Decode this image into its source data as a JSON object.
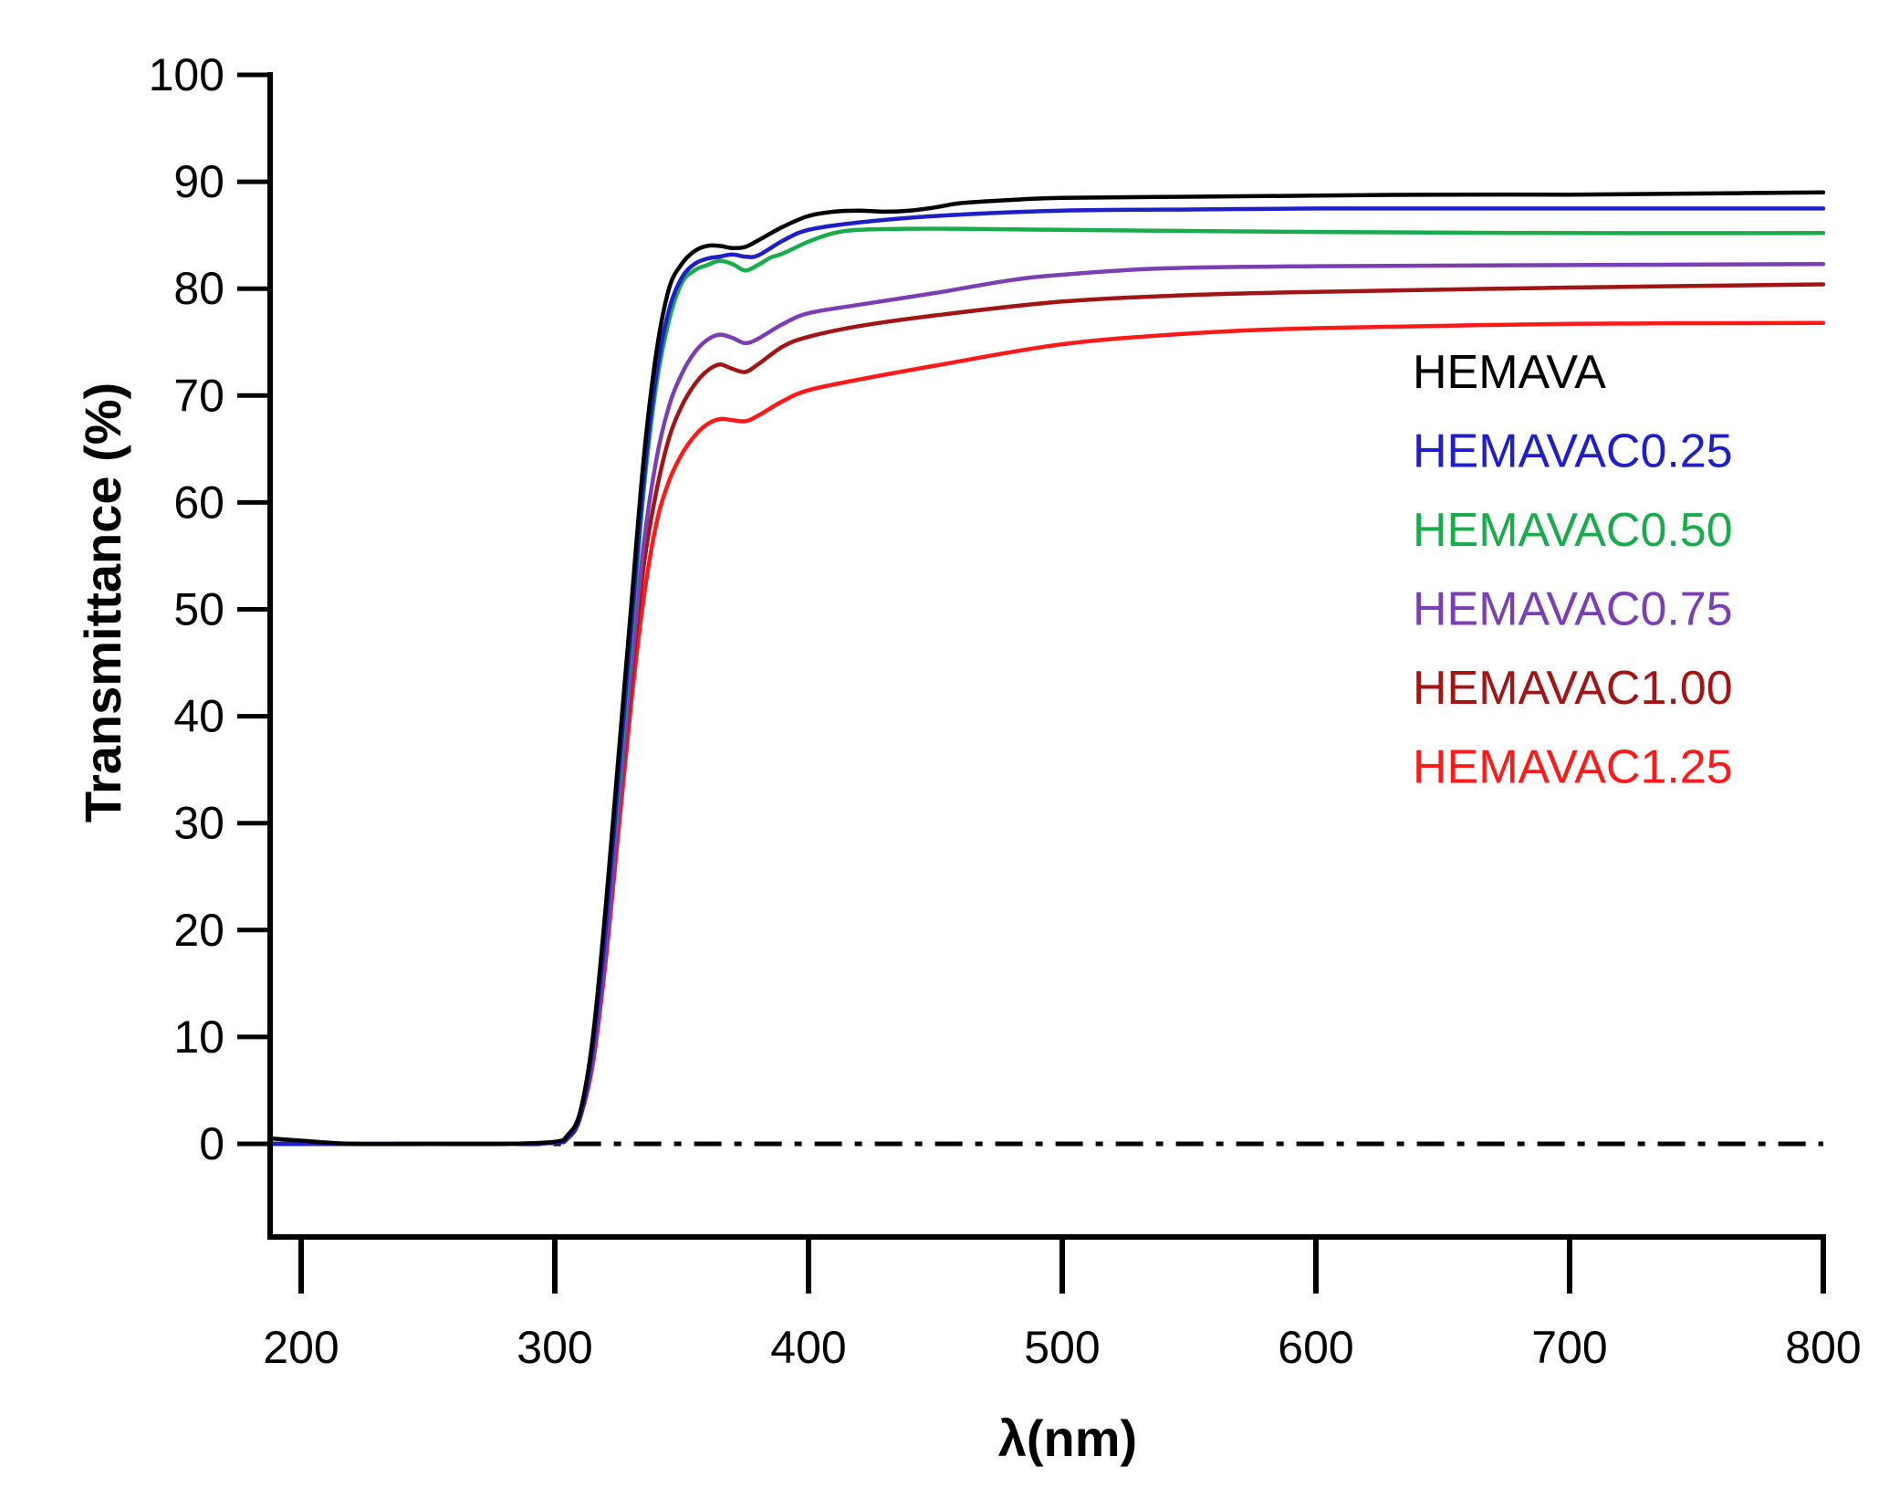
{
  "chart_data": {
    "type": "line",
    "title": "",
    "xlabel": "λ(nm)",
    "ylabel": "Transmittance (%)",
    "xlim": [
      188,
      800
    ],
    "ylim": [
      -9,
      100
    ],
    "xticks": [
      200,
      300,
      400,
      500,
      600,
      700,
      800
    ],
    "yticks": [
      0,
      10,
      20,
      30,
      40,
      50,
      60,
      70,
      80,
      90,
      100
    ],
    "grid": false,
    "legend_position": "right, inside plot",
    "baseline": {
      "y": 0,
      "style": "dash-dot",
      "color": "#000000"
    },
    "series": [
      {
        "name": "HEMAVA",
        "color": "#000000",
        "x": [
          188,
          200,
          220,
          250,
          280,
          300,
          305,
          310,
          315,
          320,
          325,
          330,
          335,
          340,
          345,
          350,
          355,
          360,
          365,
          370,
          375,
          380,
          390,
          400,
          410,
          420,
          430,
          440,
          450,
          460,
          480,
          500,
          550,
          600,
          650,
          700,
          750,
          800
        ],
        "y": [
          0.5,
          0.3,
          0,
          0,
          0,
          0.2,
          0.8,
          3,
          10,
          22,
          36,
          50,
          64,
          74,
          80,
          82.3,
          83.5,
          84,
          84,
          83.8,
          83.9,
          84.5,
          85.8,
          86.8,
          87.2,
          87.3,
          87.2,
          87.3,
          87.6,
          88,
          88.3,
          88.5,
          88.6,
          88.7,
          88.8,
          88.8,
          88.9,
          89
        ]
      },
      {
        "name": "HEMAVAC0.25",
        "color": "#1f1fc8",
        "x": [
          188,
          200,
          220,
          250,
          280,
          300,
          305,
          310,
          315,
          320,
          325,
          330,
          335,
          340,
          345,
          350,
          355,
          360,
          365,
          370,
          375,
          380,
          390,
          400,
          420,
          450,
          500,
          550,
          600,
          700,
          800
        ],
        "y": [
          0,
          0,
          0,
          0,
          0,
          0.1,
          0.5,
          2.5,
          9,
          20,
          34,
          48,
          62,
          72,
          78,
          81,
          82.3,
          82.8,
          83,
          83.2,
          83,
          83.1,
          84.5,
          85.5,
          86.2,
          86.8,
          87.3,
          87.4,
          87.5,
          87.5,
          87.5
        ]
      },
      {
        "name": "HEMAVAC0.50",
        "color": "#1aac4c",
        "x": [
          188,
          200,
          220,
          250,
          280,
          300,
          305,
          310,
          315,
          320,
          325,
          330,
          335,
          340,
          345,
          350,
          355,
          360,
          365,
          370,
          375,
          380,
          385,
          390,
          400,
          410,
          420,
          440,
          460,
          500,
          550,
          600,
          700,
          800
        ],
        "y": [
          0,
          0,
          0,
          0,
          0,
          0.1,
          0.5,
          2.5,
          9,
          20,
          33,
          47,
          61,
          71,
          77,
          80.5,
          81.7,
          82.2,
          82.6,
          82.3,
          81.7,
          82.2,
          82.9,
          83.3,
          84.4,
          85.2,
          85.5,
          85.6,
          85.6,
          85.5,
          85.4,
          85.3,
          85.2,
          85.2
        ]
      },
      {
        "name": "HEMAVAC0.75",
        "color": "#7b3fb4",
        "x": [
          188,
          200,
          220,
          250,
          280,
          300,
          305,
          310,
          315,
          320,
          325,
          330,
          335,
          340,
          345,
          350,
          355,
          360,
          365,
          370,
          375,
          380,
          390,
          400,
          420,
          450,
          480,
          500,
          540,
          600,
          700,
          800
        ],
        "y": [
          0,
          0,
          0,
          0,
          0,
          0.1,
          0.5,
          2.5,
          8,
          18,
          31,
          44,
          56,
          64,
          69,
          72,
          74,
          75.2,
          75.7,
          75.4,
          74.9,
          75.3,
          76.7,
          77.7,
          78.5,
          79.6,
          80.8,
          81.3,
          81.9,
          82.1,
          82.2,
          82.3
        ]
      },
      {
        "name": "HEMAVAC1.00",
        "color": "#a01616",
        "x": [
          188,
          200,
          220,
          250,
          280,
          300,
          305,
          310,
          315,
          320,
          325,
          330,
          335,
          340,
          345,
          350,
          355,
          360,
          365,
          370,
          375,
          380,
          390,
          400,
          420,
          450,
          500,
          550,
          600,
          700,
          800
        ],
        "y": [
          0,
          0,
          0,
          0,
          0,
          0.1,
          0.5,
          2.5,
          8,
          18,
          31,
          43,
          54,
          61,
          66,
          69,
          71,
          72.3,
          72.9,
          72.5,
          72.2,
          72.9,
          74.6,
          75.5,
          76.5,
          77.5,
          78.8,
          79.4,
          79.7,
          80.1,
          80.4
        ]
      },
      {
        "name": "HEMAVAC1.25",
        "color": "#ff1a1a",
        "x": [
          188,
          200,
          220,
          250,
          280,
          300,
          305,
          310,
          315,
          320,
          325,
          330,
          335,
          340,
          345,
          350,
          355,
          360,
          365,
          370,
          375,
          380,
          390,
          400,
          420,
          450,
          500,
          550,
          600,
          700,
          800
        ],
        "y": [
          0,
          0,
          0,
          0,
          0,
          0.1,
          0.5,
          2.5,
          7.5,
          17,
          29,
          41,
          51,
          58,
          62,
          64.5,
          66.2,
          67.3,
          67.8,
          67.7,
          67.6,
          68.1,
          69.5,
          70.5,
          71.5,
          72.8,
          74.8,
          75.8,
          76.3,
          76.7,
          76.8
        ]
      }
    ]
  }
}
